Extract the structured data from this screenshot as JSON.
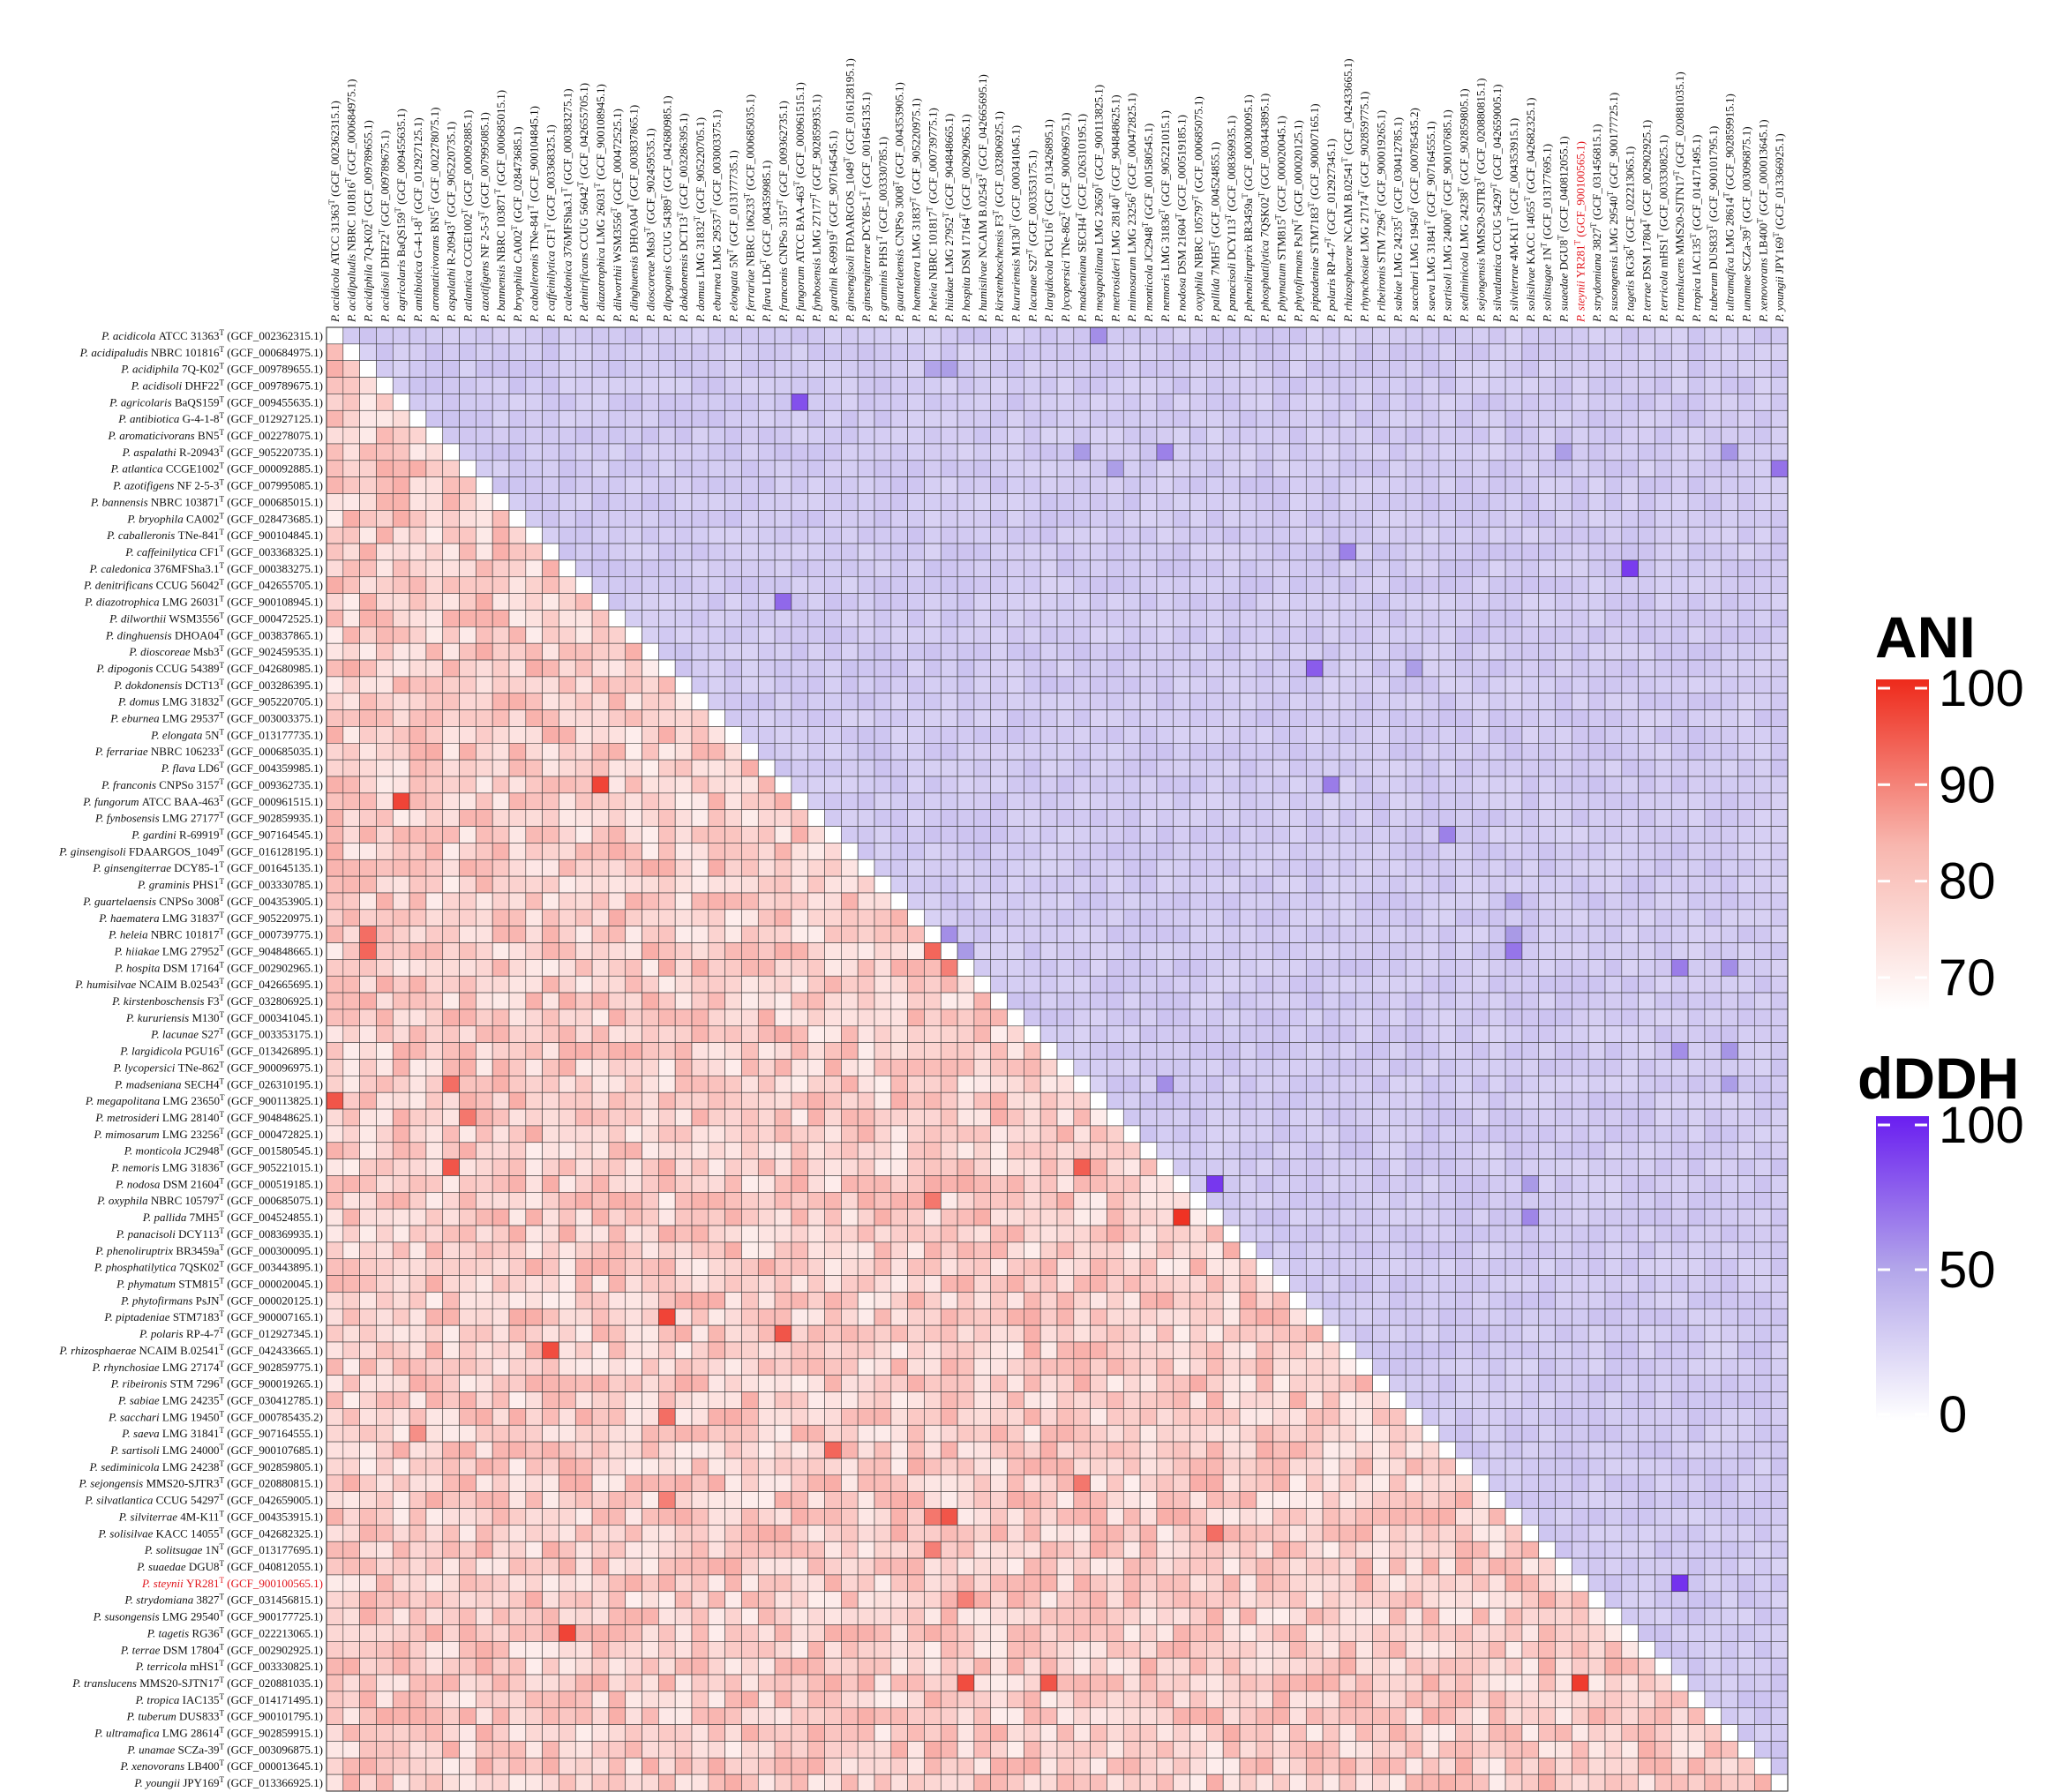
{
  "chart_data": {
    "type": "heatmap",
    "title": "",
    "upper_triangle_metric": "dDDH",
    "lower_triangle_metric": "ANI",
    "highlighted_taxon_index": 75,
    "taxa": [
      {
        "genus": "P.",
        "species": "acidicola",
        "strain": "ATCC 31363",
        "sup": "T",
        "acc": "(GCF_002362315.1)"
      },
      {
        "genus": "P.",
        "species": "acidipaludis",
        "strain": "NBRC 101816",
        "sup": "T",
        "acc": "(GCF_000684975.1)"
      },
      {
        "genus": "P.",
        "species": "acidiphila",
        "strain": "7Q-K02",
        "sup": "T",
        "acc": "(GCF_009789655.1)"
      },
      {
        "genus": "P.",
        "species": "acidisoli",
        "strain": "DHF22",
        "sup": "T",
        "acc": "(GCF_009789675.1)"
      },
      {
        "genus": "P.",
        "species": "agricolaris",
        "strain": "BaQS159",
        "sup": "T",
        "acc": "(GCF_009455635.1)"
      },
      {
        "genus": "P.",
        "species": "antibiotica",
        "strain": "G-4-1-8",
        "sup": "T",
        "acc": "(GCF_012927125.1)"
      },
      {
        "genus": "P.",
        "species": "aromaticivorans",
        "strain": "BN5",
        "sup": "T",
        "acc": "(GCF_002278075.1)"
      },
      {
        "genus": "P.",
        "species": "aspalathi",
        "strain": "R-20943",
        "sup": "T",
        "acc": "(GCF_905220735.1)"
      },
      {
        "genus": "P.",
        "species": "atlantica",
        "strain": "CCGE1002",
        "sup": "T",
        "acc": "(GCF_000092885.1)"
      },
      {
        "genus": "P.",
        "species": "azotifigens",
        "strain": "NF 2-5-3",
        "sup": "T",
        "acc": "(GCF_007995085.1)"
      },
      {
        "genus": "P.",
        "species": "bannensis",
        "strain": "NBRC 103871",
        "sup": "T",
        "acc": "(GCF_000685015.1)"
      },
      {
        "genus": "P.",
        "species": "bryophila",
        "strain": "CA002",
        "sup": "T",
        "acc": "(GCF_028473685.1)"
      },
      {
        "genus": "P.",
        "species": "caballeronis",
        "strain": "TNe-841",
        "sup": "T",
        "acc": "(GCF_900104845.1)"
      },
      {
        "genus": "P.",
        "species": "caffeinilytica",
        "strain": "CF1",
        "sup": "T",
        "acc": "(GCF_003368325.1)"
      },
      {
        "genus": "P.",
        "species": "caledonica",
        "strain": "376MFSha3.1",
        "sup": "T",
        "acc": "(GCF_000383275.1)"
      },
      {
        "genus": "P.",
        "species": "denitrificans",
        "strain": "CCUG 56042",
        "sup": "T",
        "acc": "(GCF_042655705.1)"
      },
      {
        "genus": "P.",
        "species": "diazotrophica",
        "strain": "LMG 26031",
        "sup": "T",
        "acc": "(GCF_900108945.1)"
      },
      {
        "genus": "P.",
        "species": "dilworthii",
        "strain": "WSM3556",
        "sup": "T",
        "acc": "(GCF_000472525.1)"
      },
      {
        "genus": "P.",
        "species": "dinghuensis",
        "strain": "DHOA04",
        "sup": "T",
        "acc": "(GCF_003837865.1)"
      },
      {
        "genus": "P.",
        "species": "dioscoreae",
        "strain": "Msb3",
        "sup": "T",
        "acc": "(GCF_902459535.1)"
      },
      {
        "genus": "P.",
        "species": "dipogonis",
        "strain": "CCUG 54389",
        "sup": "T",
        "acc": "(GCF_042680985.1)"
      },
      {
        "genus": "P.",
        "species": "dokdonensis",
        "strain": "DCT13",
        "sup": "T",
        "acc": "(GCF_003286395.1)"
      },
      {
        "genus": "P.",
        "species": "domus",
        "strain": "LMG 31832",
        "sup": "T",
        "acc": "(GCF_905220705.1)"
      },
      {
        "genus": "P.",
        "species": "eburnea",
        "strain": "LMG 29537",
        "sup": "T",
        "acc": "(GCF_003003375.1)"
      },
      {
        "genus": "P.",
        "species": "elongata",
        "strain": "5N",
        "sup": "T",
        "acc": "(GCF_013177735.1)"
      },
      {
        "genus": "P.",
        "species": "ferrariae",
        "strain": "NBRC 106233",
        "sup": "T",
        "acc": "(GCF_000685035.1)"
      },
      {
        "genus": "P.",
        "species": "flava",
        "strain": "LD6",
        "sup": "T",
        "acc": "(GCF_004359985.1)"
      },
      {
        "genus": "P.",
        "species": "franconis",
        "strain": "CNPSo 3157",
        "sup": "T",
        "acc": "(GCF_009362735.1)"
      },
      {
        "genus": "P.",
        "species": "fungorum",
        "strain": "ATCC BAA-463",
        "sup": "T",
        "acc": "(GCF_000961515.1)"
      },
      {
        "genus": "P.",
        "species": "fynbosensis",
        "strain": "LMG 27177",
        "sup": "T",
        "acc": "(GCF_902859935.1)"
      },
      {
        "genus": "P.",
        "species": "gardini",
        "strain": "R-69919",
        "sup": "T",
        "acc": "(GCF_907164545.1)"
      },
      {
        "genus": "P.",
        "species": "ginsengisoli",
        "strain": "FDAARGOS_1049",
        "sup": "T",
        "acc": "(GCF_016128195.1)"
      },
      {
        "genus": "P.",
        "species": "ginsengiterrae",
        "strain": "DCY85-1",
        "sup": "T",
        "acc": "(GCF_001645135.1)"
      },
      {
        "genus": "P.",
        "species": "graminis",
        "strain": "PHS1",
        "sup": "T",
        "acc": "(GCF_003330785.1)"
      },
      {
        "genus": "P.",
        "species": "guartelaensis",
        "strain": "CNPSo 3008",
        "sup": "T",
        "acc": "(GCF_004353905.1)"
      },
      {
        "genus": "P.",
        "species": "haematera",
        "strain": "LMG 31837",
        "sup": "T",
        "acc": "(GCF_905220975.1)"
      },
      {
        "genus": "P.",
        "species": "heleia",
        "strain": "NBRC 101817",
        "sup": "T",
        "acc": "(GCF_000739775.1)"
      },
      {
        "genus": "P.",
        "species": "hiiakae",
        "strain": "LMG 27952",
        "sup": "T",
        "acc": "(GCF_904848665.1)"
      },
      {
        "genus": "P.",
        "species": "hospita",
        "strain": "DSM 17164",
        "sup": "T",
        "acc": "(GCF_002902965.1)"
      },
      {
        "genus": "P.",
        "species": "humisilvae",
        "strain": "NCAIM B.02543",
        "sup": "T",
        "acc": "(GCF_042665695.1)"
      },
      {
        "genus": "P.",
        "species": "kirstenboschensis",
        "strain": "F3",
        "sup": "T",
        "acc": "(GCF_032806925.1)"
      },
      {
        "genus": "P.",
        "species": "kururiensis",
        "strain": "M130",
        "sup": "T",
        "acc": "(GCF_000341045.1)"
      },
      {
        "genus": "P.",
        "species": "lacunae",
        "strain": "S27",
        "sup": "T",
        "acc": "(GCF_003353175.1)"
      },
      {
        "genus": "P.",
        "species": "largidicola",
        "strain": "PGU16",
        "sup": "T",
        "acc": "(GCF_013426895.1)"
      },
      {
        "genus": "P.",
        "species": "lycopersici",
        "strain": "TNe-862",
        "sup": "T",
        "acc": "(GCF_900096975.1)"
      },
      {
        "genus": "P.",
        "species": "madseniana",
        "strain": "SECH4",
        "sup": "T",
        "acc": "(GCF_026310195.1)"
      },
      {
        "genus": "P.",
        "species": "megapolitana",
        "strain": "LMG 23650",
        "sup": "T",
        "acc": "(GCF_900113825.1)"
      },
      {
        "genus": "P.",
        "species": "metrosideri",
        "strain": "LMG 28140",
        "sup": "T",
        "acc": "(GCF_904848625.1)"
      },
      {
        "genus": "P.",
        "species": "mimosarum",
        "strain": "LMG 23256",
        "sup": "T",
        "acc": "(GCF_000472825.1)"
      },
      {
        "genus": "P.",
        "species": "monticola",
        "strain": "JC2948",
        "sup": "T",
        "acc": "(GCF_001580545.1)"
      },
      {
        "genus": "P.",
        "species": "nemoris",
        "strain": "LMG 31836",
        "sup": "T",
        "acc": "(GCF_905221015.1)"
      },
      {
        "genus": "P.",
        "species": "nodosa",
        "strain": "DSM 21604",
        "sup": "T",
        "acc": "(GCF_000519185.1)"
      },
      {
        "genus": "P.",
        "species": "oxyphila",
        "strain": "NBRC 105797",
        "sup": "T",
        "acc": "(GCF_000685075.1)"
      },
      {
        "genus": "P.",
        "species": "pallida",
        "strain": "7MH5",
        "sup": "T",
        "acc": "(GCF_004524855.1)"
      },
      {
        "genus": "P.",
        "species": "panacisoli",
        "strain": "DCY113",
        "sup": "T",
        "acc": "(GCF_008369935.1)"
      },
      {
        "genus": "P.",
        "species": "phenoliruptrix",
        "strain": "BR3459a",
        "sup": "T",
        "acc": "(GCF_000300095.1)"
      },
      {
        "genus": "P.",
        "species": "phosphatilytica",
        "strain": "7QSK02",
        "sup": "T",
        "acc": "(GCF_003443895.1)"
      },
      {
        "genus": "P.",
        "species": "phymatum",
        "strain": "STM815",
        "sup": "T",
        "acc": "(GCF_000020045.1)"
      },
      {
        "genus": "P.",
        "species": "phytofirmans",
        "strain": "PsJN",
        "sup": "T",
        "acc": "(GCF_000020125.1)"
      },
      {
        "genus": "P.",
        "species": "piptadeniae",
        "strain": "STM7183",
        "sup": "T",
        "acc": "(GCF_900007165.1)"
      },
      {
        "genus": "P.",
        "species": "polaris",
        "strain": "RP-4-7",
        "sup": "T",
        "acc": "(GCF_012927345.1)"
      },
      {
        "genus": "P.",
        "species": "rhizosphaerae",
        "strain": "NCAIM B.02541",
        "sup": "T",
        "acc": "(GCF_042433665.1)"
      },
      {
        "genus": "P.",
        "species": "rhynchosiae",
        "strain": "LMG 27174",
        "sup": "T",
        "acc": "(GCF_902859775.1)"
      },
      {
        "genus": "P.",
        "species": "ribeironis",
        "strain": "STM 7296",
        "sup": "T",
        "acc": "(GCF_900019265.1)"
      },
      {
        "genus": "P.",
        "species": "sabiae",
        "strain": "LMG 24235",
        "sup": "T",
        "acc": "(GCF_030412785.1)"
      },
      {
        "genus": "P.",
        "species": "sacchari",
        "strain": "LMG 19450",
        "sup": "T",
        "acc": "(GCF_000785435.2)"
      },
      {
        "genus": "P.",
        "species": "saeva",
        "strain": "LMG 31841",
        "sup": "T",
        "acc": "(GCF_907164555.1)"
      },
      {
        "genus": "P.",
        "species": "sartisoli",
        "strain": "LMG 24000",
        "sup": "T",
        "acc": "(GCF_900107685.1)"
      },
      {
        "genus": "P.",
        "species": "sediminicola",
        "strain": "LMG 24238",
        "sup": "T",
        "acc": "(GCF_902859805.1)"
      },
      {
        "genus": "P.",
        "species": "sejongensis",
        "strain": "MMS20-SJTR3",
        "sup": "T",
        "acc": "(GCF_020880815.1)"
      },
      {
        "genus": "P.",
        "species": "silvatlantica",
        "strain": "CCUG 54297",
        "sup": "T",
        "acc": "(GCF_042659005.1)"
      },
      {
        "genus": "P.",
        "species": "silviterrae",
        "strain": "4M-K11",
        "sup": "T",
        "acc": "(GCF_004353915.1)"
      },
      {
        "genus": "P.",
        "species": "solisilvae",
        "strain": "KACC 14055",
        "sup": "T",
        "acc": "(GCF_042682325.1)"
      },
      {
        "genus": "P.",
        "species": "solitsugae",
        "strain": "1N",
        "sup": "T",
        "acc": "(GCF_013177695.1)"
      },
      {
        "genus": "P.",
        "species": "suaedae",
        "strain": "DGU8",
        "sup": "T",
        "acc": "(GCF_040812055.1)"
      },
      {
        "genus": "P.",
        "species": "steynii",
        "strain": "YR281",
        "sup": "T",
        "acc": "(GCF_900100565.1)"
      },
      {
        "genus": "P.",
        "species": "strydomiana",
        "strain": "3827",
        "sup": "T",
        "acc": "(GCF_031456815.1)"
      },
      {
        "genus": "P.",
        "species": "susongensis",
        "strain": "LMG 29540",
        "sup": "T",
        "acc": "(GCF_900177725.1)"
      },
      {
        "genus": "P.",
        "species": "tagetis",
        "strain": "RG36",
        "sup": "T",
        "acc": "(GCF_022213065.1)"
      },
      {
        "genus": "P.",
        "species": "terrae",
        "strain": "DSM 17804",
        "sup": "T",
        "acc": "(GCF_002902925.1)"
      },
      {
        "genus": "P.",
        "species": "terricola",
        "strain": "mHS1",
        "sup": "T",
        "acc": "(GCF_003330825.1)"
      },
      {
        "genus": "P.",
        "species": "translucens",
        "strain": "MMS20-SJTN17",
        "sup": "T",
        "acc": "(GCF_020881035.1)"
      },
      {
        "genus": "P.",
        "species": "tropica",
        "strain": "IAC135",
        "sup": "T",
        "acc": "(GCF_014171495.1)"
      },
      {
        "genus": "P.",
        "species": "tuberum",
        "strain": "DUS833",
        "sup": "T",
        "acc": "(GCF_900101795.1)"
      },
      {
        "genus": "P.",
        "species": "ultramafica",
        "strain": "LMG 28614",
        "sup": "T",
        "acc": "(GCF_902859915.1)"
      },
      {
        "genus": "P.",
        "species": "unamae",
        "strain": "SCZa-39",
        "sup": "T",
        "acc": "(GCF_003096875.1)"
      },
      {
        "genus": "P.",
        "species": "xenovorans",
        "strain": "LB400",
        "sup": "T",
        "acc": "(GCF_000013645.1)"
      },
      {
        "genus": "P.",
        "species": "youngii",
        "strain": "JPY169",
        "sup": "T",
        "acc": "(GCF_013366925.1)"
      }
    ],
    "ani_scale": {
      "title": "ANI",
      "min": 70,
      "max": 100,
      "ticks": [
        100,
        90,
        80,
        70
      ],
      "color_low": "#ffffff",
      "color_high": "#ee2a1b"
    },
    "dddh_scale": {
      "title": "dDDH",
      "min": 0,
      "max": 100,
      "ticks": [
        100,
        50,
        0
      ],
      "color_low": "#ffffff",
      "color_mid": "#a99ae6",
      "color_high": "#6a1ef0"
    },
    "ani_base_range": [
      74,
      84
    ],
    "dddh_base_range": [
      22,
      30
    ],
    "ani_high_pairs": [
      [
        28,
        4,
        97
      ],
      [
        27,
        16,
        97
      ],
      [
        61,
        13,
        96
      ],
      [
        78,
        14,
        97
      ],
      [
        81,
        38,
        96
      ],
      [
        81,
        43,
        95
      ],
      [
        81,
        75,
        98
      ],
      [
        59,
        20,
        97
      ],
      [
        60,
        27,
        95
      ],
      [
        53,
        51,
        99
      ],
      [
        46,
        0,
        95
      ],
      [
        37,
        2,
        93
      ],
      [
        36,
        2,
        92
      ],
      [
        50,
        7,
        95
      ],
      [
        45,
        7,
        92
      ],
      [
        37,
        36,
        93
      ],
      [
        71,
        37,
        95
      ],
      [
        71,
        36,
        91
      ],
      [
        50,
        45,
        94
      ],
      [
        47,
        8,
        91
      ],
      [
        65,
        20,
        92
      ],
      [
        67,
        30,
        93
      ],
      [
        38,
        37,
        90
      ],
      [
        72,
        53,
        92
      ],
      [
        66,
        5,
        88
      ],
      [
        52,
        36,
        91
      ],
      [
        76,
        38,
        90
      ],
      [
        69,
        45,
        91
      ],
      [
        70,
        20,
        90
      ],
      [
        73,
        36,
        90
      ]
    ],
    "dddh_high_pairs": [
      [
        4,
        28,
        80
      ],
      [
        16,
        27,
        70
      ],
      [
        13,
        61,
        60
      ],
      [
        14,
        78,
        88
      ],
      [
        38,
        81,
        62
      ],
      [
        43,
        81,
        55
      ],
      [
        75,
        81,
        92
      ],
      [
        20,
        59,
        75
      ],
      [
        27,
        60,
        62
      ],
      [
        51,
        53,
        90
      ],
      [
        0,
        46,
        55
      ],
      [
        2,
        37,
        48
      ],
      [
        2,
        36,
        45
      ],
      [
        7,
        50,
        60
      ],
      [
        7,
        45,
        50
      ],
      [
        36,
        37,
        55
      ],
      [
        37,
        71,
        65
      ],
      [
        36,
        71,
        50
      ],
      [
        45,
        50,
        55
      ],
      [
        8,
        47,
        48
      ],
      [
        20,
        65,
        48
      ],
      [
        30,
        67,
        60
      ],
      [
        37,
        38,
        50
      ],
      [
        53,
        72,
        58
      ],
      [
        8,
        87,
        66
      ],
      [
        7,
        84,
        52
      ],
      [
        7,
        74,
        48
      ],
      [
        34,
        71,
        45
      ],
      [
        38,
        84,
        55
      ],
      [
        43,
        84,
        52
      ],
      [
        45,
        84,
        48
      ],
      [
        51,
        72,
        50
      ]
    ]
  }
}
